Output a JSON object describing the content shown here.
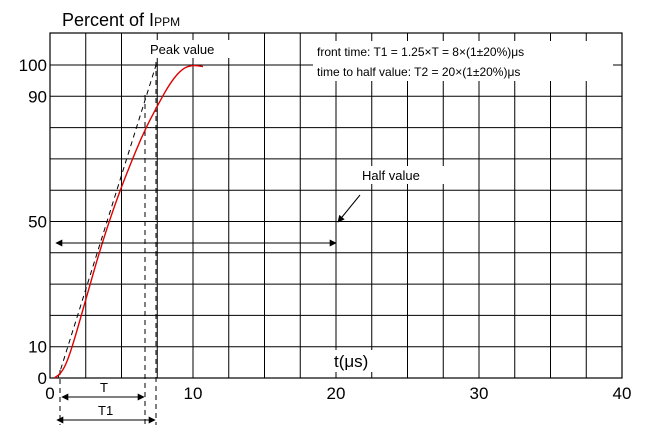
{
  "chart_data": {
    "type": "line",
    "title": "Percent of I",
    "title_subscript": "PPM",
    "xlabel": "t(μs)",
    "ylabel": "",
    "xlim": [
      0,
      40
    ],
    "ylim": [
      0,
      100
    ],
    "x_ticks": [
      0,
      10,
      20,
      30,
      40
    ],
    "y_ticks": [
      0,
      10,
      50,
      90,
      100
    ],
    "grid": true,
    "series": [
      {
        "color": "#e00000",
        "points": [
          [
            0.3,
            0
          ],
          [
            0.9,
            2
          ],
          [
            1.5,
            9
          ],
          [
            2.5,
            25
          ],
          [
            3.5,
            41
          ],
          [
            4.5,
            55
          ],
          [
            5.5,
            67
          ],
          [
            6.5,
            78
          ],
          [
            7.5,
            87
          ],
          [
            8.5,
            95
          ],
          [
            9.3,
            99
          ],
          [
            10,
            100
          ],
          [
            10.7,
            99.5
          ]
        ]
      }
    ],
    "annotations": {
      "peak_label": "Peak value",
      "half_label": "Half value",
      "front_time": "front time: T1 = 1.25×T = 8×(1±20%)μs",
      "half_time": "time to half value: T2 = 20×(1±20%)μs",
      "T_label": "T",
      "T1_label": "T1"
    }
  }
}
